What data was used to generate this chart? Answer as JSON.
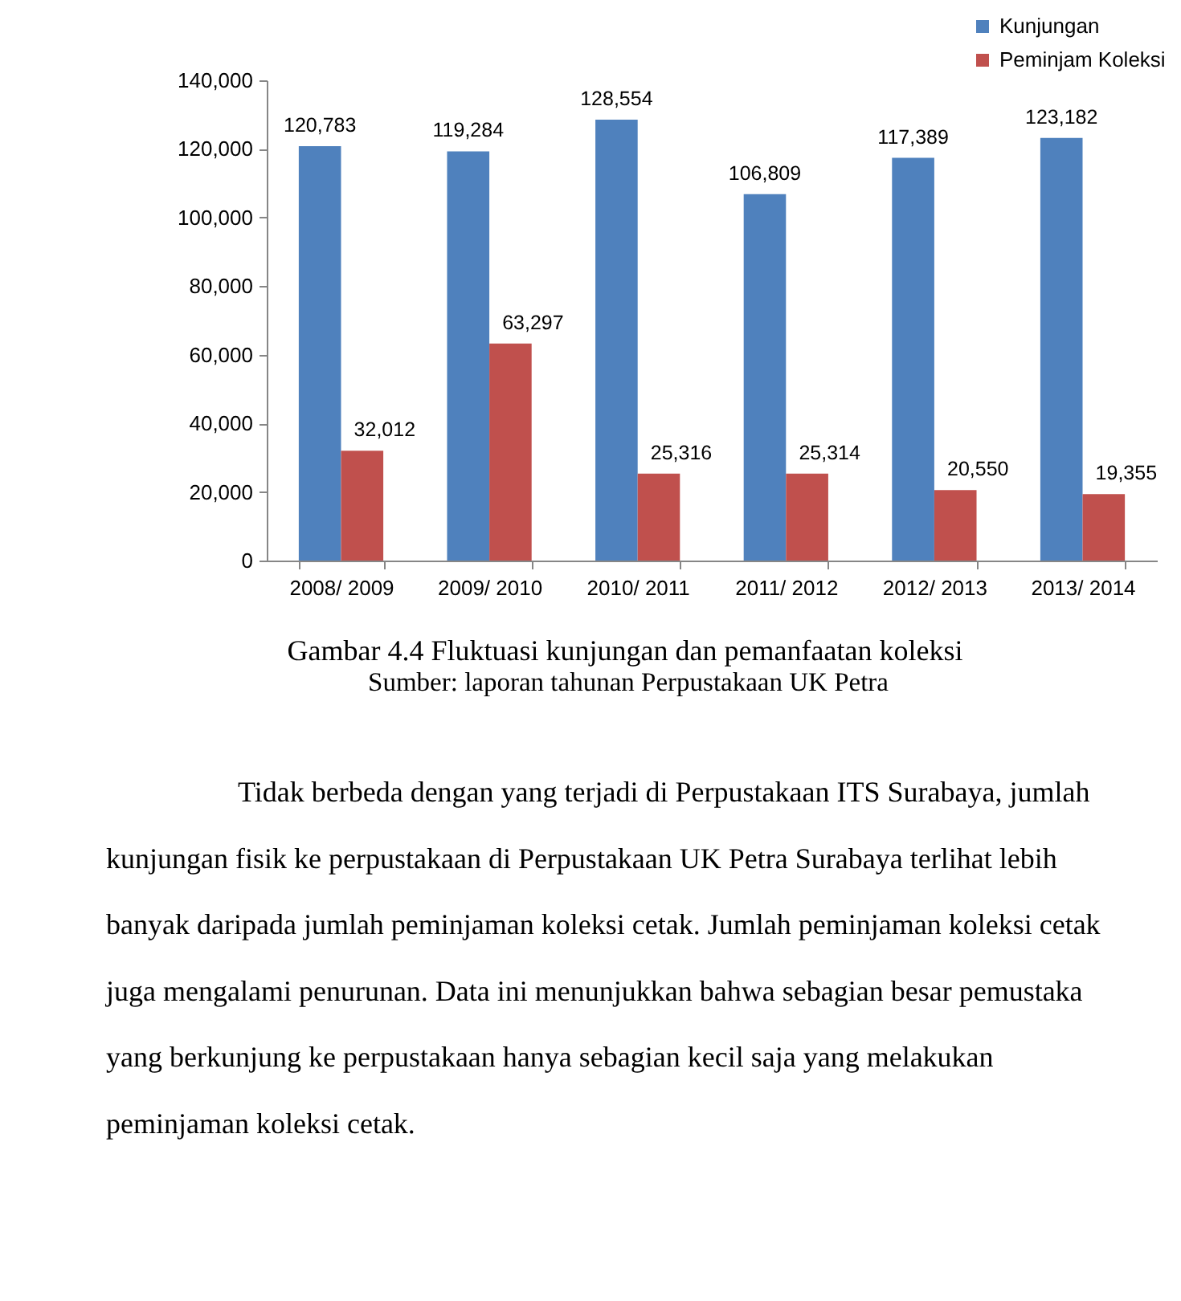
{
  "chart_data": {
    "type": "bar",
    "title": "Gambar 4.4 Fluktuasi kunjungan dan pemanfaatan koleksi",
    "categories": [
      "2008/ 2009",
      "2009/ 2010",
      "2010/ 2011",
      "2011/ 2012",
      "2012/ 2013",
      "2013/ 2014"
    ],
    "series": [
      {
        "name": "Kunjungan",
        "color": "#4f81bd",
        "values": [
          120783,
          119284,
          128554,
          106809,
          117389,
          123182
        ],
        "value_labels": [
          "120,783",
          "119,284",
          "128,554",
          "106,809",
          "117,389",
          "123,182"
        ]
      },
      {
        "name": "Peminjam Koleksi",
        "color": "#c0504d",
        "values": [
          32012,
          63297,
          25316,
          25314,
          20550,
          19355
        ],
        "value_labels": [
          "32,012",
          "63,297",
          "25,316",
          "25,314",
          "20,550",
          "19,355"
        ]
      }
    ],
    "ylim": [
      0,
      140000
    ],
    "yticks": [
      {
        "value": 0,
        "label": "0"
      },
      {
        "value": 20000,
        "label": "20,000"
      },
      {
        "value": 40000,
        "label": "40,000"
      },
      {
        "value": 60000,
        "label": "60,000"
      },
      {
        "value": 80000,
        "label": "80,000"
      },
      {
        "value": 100000,
        "label": "100,000"
      },
      {
        "value": 120000,
        "label": "120,000"
      },
      {
        "value": 140000,
        "label": "140,000"
      }
    ],
    "legend": "top right",
    "annotations": [
      "Sumber: laporan tahunan Perpustakaan UK Petra",
      "Tidak berbeda dengan yang terjadi di Perpustakaan ITS Surabaya, jumlah kunjungan fisik ke perpustakaan di Perpustakaan UK Petra Surabaya terlihat lebih banyak daripada jumlah peminjaman koleksi cetak. Jumlah peminjaman koleksi cetak juga mengalami penurunan. Data ini menunjukkan bahwa sebagian besar pemustaka yang berkunjung ke perpustakaan hanya sebagian kecil saja yang melakukan peminjaman koleksi cetak."
    ]
  }
}
